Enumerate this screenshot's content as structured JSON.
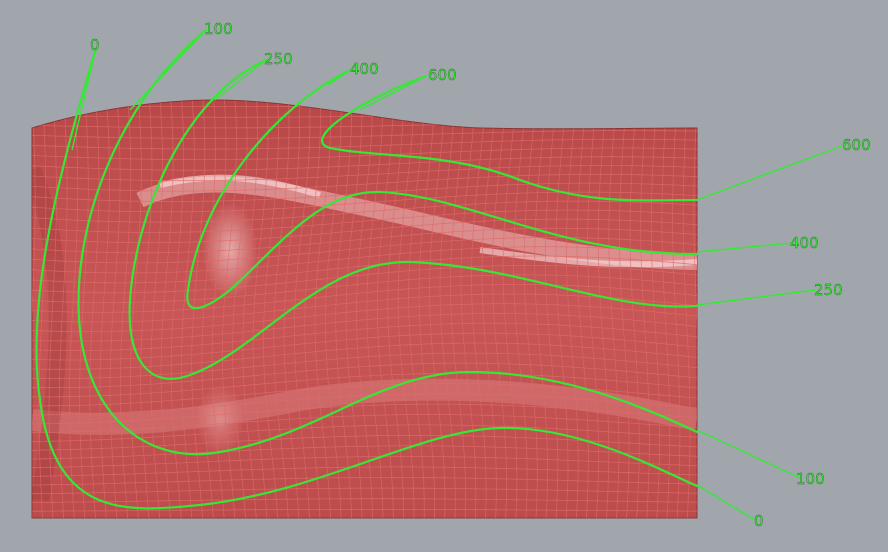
{
  "viewport": {
    "background": "#a1a6ad"
  },
  "surface": {
    "fill": "#c45252",
    "grid_color": "#e06a6a",
    "highlight": "#f0c8c8"
  },
  "curves": {
    "color": "#36e836",
    "labels": {
      "c0_start": "0",
      "c0_end": "0",
      "c100_start": "100",
      "c100_end": "100",
      "c250_start": "250",
      "c250_end": "250",
      "c400_start": "400",
      "c400_end": "400",
      "c600_start": "600",
      "c600_end": "600"
    }
  }
}
